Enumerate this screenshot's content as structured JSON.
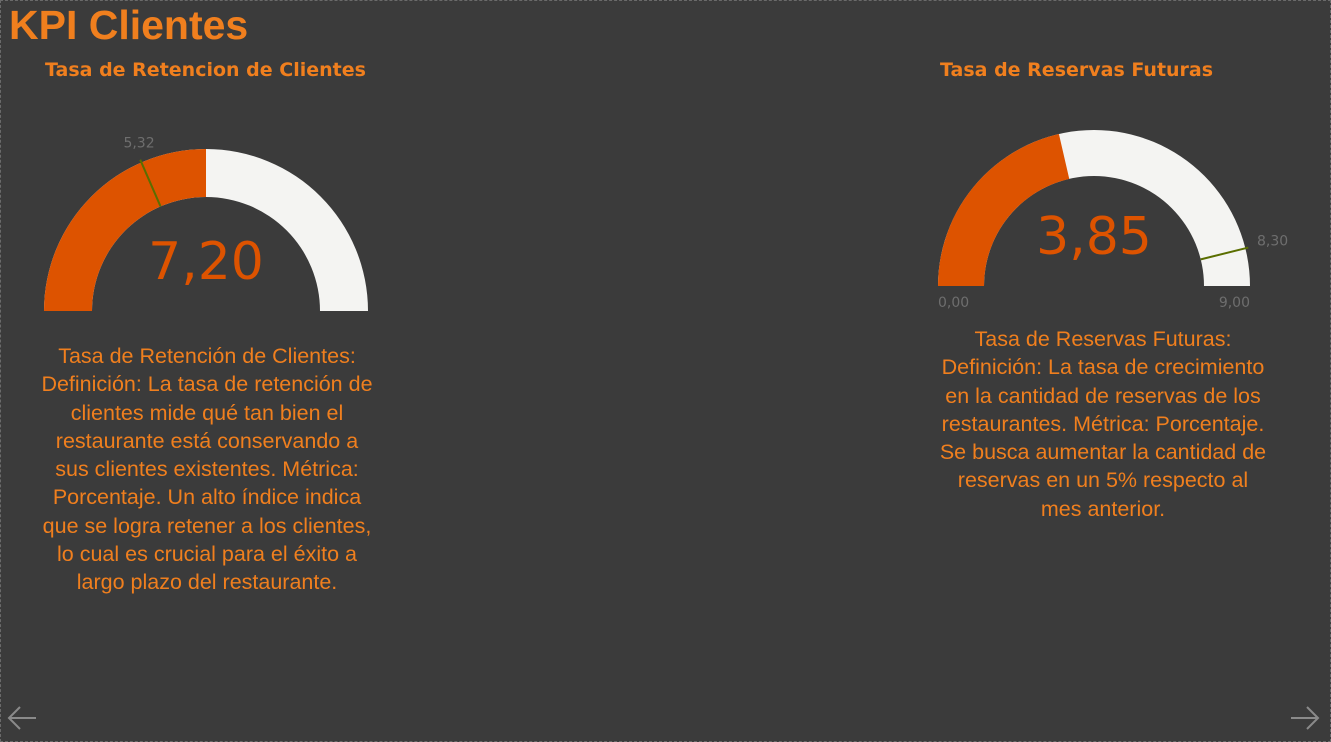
{
  "page": {
    "title": "KPI Clientes"
  },
  "colors": {
    "accent": "#f07f1e",
    "fill": "#dd5300",
    "track": "#f4f4f2",
    "target": "#5a6e00",
    "label": "#6e6e6e"
  },
  "icons": {
    "prev": "arrow-left-icon",
    "next": "arrow-right-icon"
  },
  "chart_data": [
    {
      "type": "gauge",
      "title": "Tasa de Retencion de Clientes",
      "value": 7.2,
      "value_label": "7,20",
      "target": 5.32,
      "target_label": "5,32",
      "min": 0,
      "max": 14.4,
      "min_label": "",
      "max_label": ""
    },
    {
      "type": "gauge",
      "title": "Tasa de Reservas Futuras",
      "value": 3.85,
      "value_label": "3,85",
      "target": 8.3,
      "target_label": "8,30",
      "min": 0,
      "max": 9,
      "min_label": "0,00",
      "max_label": "9,00"
    }
  ],
  "descriptions": [
    "Tasa de Retención de Clientes: Definición: La tasa de retención de clientes mide qué tan bien el restaurante está conservando a sus clientes existentes. Métrica: Porcentaje. Un alto índice indica que se logra retener a los clientes, lo cual es crucial para el éxito a largo plazo del restaurante.",
    "Tasa de Reservas Futuras: Definición: La tasa de crecimiento en la cantidad de reservas de los restaurantes. Métrica: Porcentaje. Se busca aumentar la cantidad de reservas en un 5% respecto al mes anterior."
  ]
}
